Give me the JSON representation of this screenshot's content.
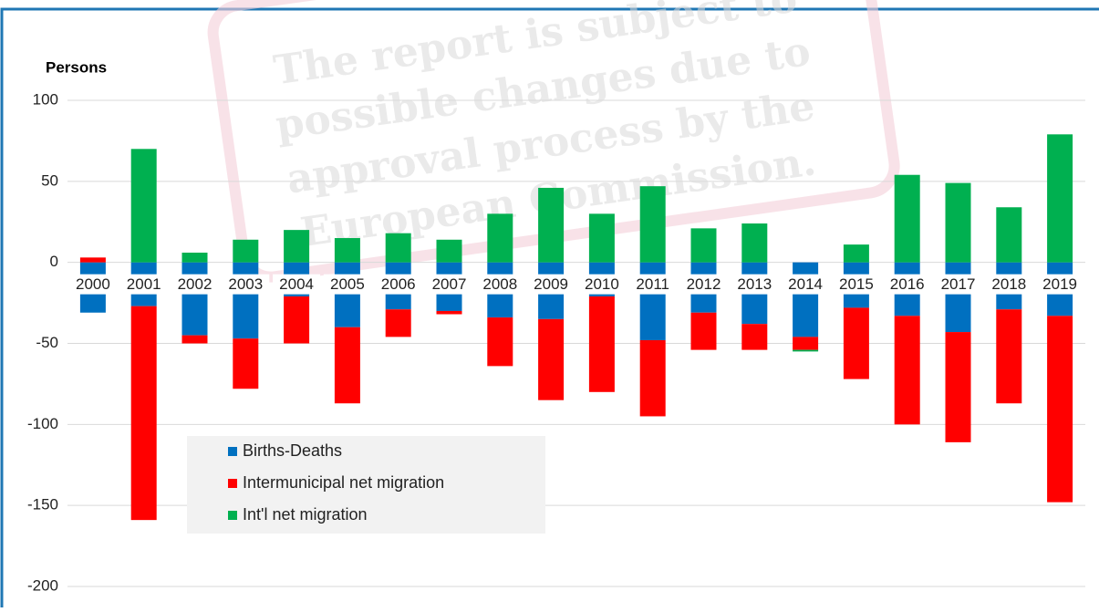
{
  "chart_data": {
    "type": "bar",
    "stacked": true,
    "y_label": "Persons",
    "watermark": [
      "The report is subject to",
      "possible changes due to",
      "approval process by the",
      "European Commission."
    ],
    "categories": [
      "2000",
      "2001",
      "2002",
      "2003",
      "2004",
      "2005",
      "2006",
      "2007",
      "2008",
      "2009",
      "2010",
      "2011",
      "2012",
      "2013",
      "2014",
      "2015",
      "2016",
      "2017",
      "2018",
      "2019"
    ],
    "series": [
      {
        "name": "Births-Deaths",
        "color": "#0070c0",
        "values": [
          -31,
          -27,
          -45,
          -47,
          -21,
          -40,
          -29,
          -30,
          -34,
          -35,
          -21,
          -48,
          -31,
          -38,
          -46,
          -28,
          -33,
          -43,
          -29,
          -33
        ]
      },
      {
        "name": "Intermunicipal net migration",
        "color": "#ff0000",
        "values": [
          3,
          -132,
          -5,
          -31,
          -29,
          -47,
          -17,
          -2,
          -30,
          -50,
          -59,
          -47,
          -23,
          -16,
          -8,
          -44,
          -67,
          -68,
          -58,
          -115
        ]
      },
      {
        "name": "Int'l net migration",
        "color": "#00b050",
        "values": [
          0,
          70,
          6,
          14,
          20,
          15,
          18,
          14,
          30,
          46,
          30,
          47,
          21,
          24,
          -1,
          11,
          54,
          49,
          34,
          79
        ]
      }
    ],
    "ylim": [
      -200,
      100
    ],
    "yticks": [
      100,
      50,
      0,
      -50,
      -100,
      -150,
      -200
    ],
    "grid": true
  }
}
